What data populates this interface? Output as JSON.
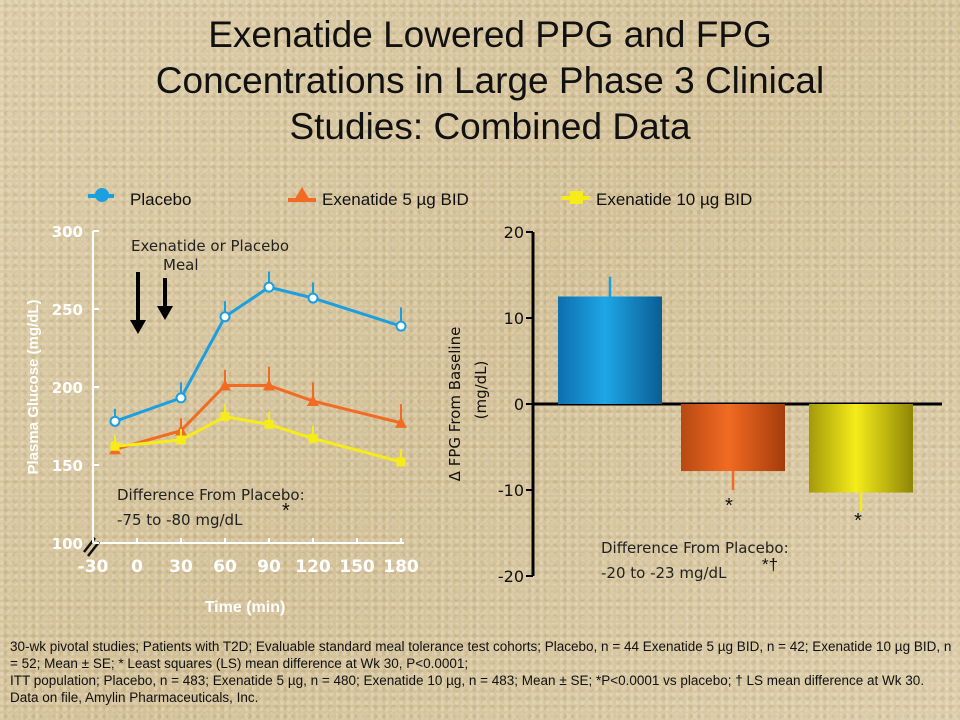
{
  "title": {
    "line1": "Exenatide Lowered PPG and FPG",
    "line2": "Concentrations in Large Phase 3  Clinical",
    "line3": "Studies: Combined Data"
  },
  "legend": [
    {
      "label": "Placebo",
      "color": "#1a9fe0",
      "marker": "circle"
    },
    {
      "label": "Exenatide 5 µg BID",
      "color": "#f26b22",
      "marker": "triangle"
    },
    {
      "label": "Exenatide 10 µg BID",
      "color": "#f5ec1a",
      "marker": "square"
    }
  ],
  "colors": {
    "placebo": "#1a9fe0",
    "exenatide_5": "#f26b22",
    "exenatide_10": "#f5ec1a"
  },
  "chart_data": [
    {
      "type": "line",
      "xlabel": "Time (min)",
      "ylabel": "Plasma Glucose (mg/dL)",
      "xlim": [
        -30,
        180
      ],
      "ylim": [
        100,
        300
      ],
      "xticks": [
        -30,
        0,
        30,
        60,
        90,
        120,
        150,
        180
      ],
      "yticks": [
        100,
        150,
        200,
        250,
        300
      ],
      "annotations": {
        "arrow_label_1": "Exenatide  or Placebo",
        "arrow_label_2": "Meal",
        "difference_line1": "Difference From Placebo:",
        "difference_line2": "-75 to -80 mg/dL",
        "star": "*"
      },
      "arrows_at_x": [
        -15,
        -1
      ],
      "series": [
        {
          "name": "Placebo",
          "x": [
            -15,
            30,
            60,
            90,
            120,
            180
          ],
          "y": [
            178,
            193,
            245,
            264,
            257,
            239
          ],
          "err": [
            8,
            10,
            10,
            10,
            10,
            12
          ]
        },
        {
          "name": "Exenatide 5 µg BID",
          "x": [
            -15,
            30,
            60,
            90,
            120,
            180
          ],
          "y": [
            160,
            172,
            201,
            201,
            191,
            177
          ],
          "err": [
            7,
            8,
            10,
            12,
            12,
            12
          ]
        },
        {
          "name": "Exenatide 10 µg BID",
          "x": [
            -15,
            30,
            60,
            90,
            120,
            180
          ],
          "y": [
            162,
            166,
            181,
            176,
            167,
            152
          ],
          "err": [
            7,
            7,
            8,
            8,
            8,
            8
          ]
        }
      ]
    },
    {
      "type": "bar",
      "ylabel_line1": "Δ FPG From Baseline",
      "ylabel_line2": "(mg/dL)",
      "ylim": [
        -20,
        20
      ],
      "yticks": [
        -20,
        -10,
        0,
        10,
        20
      ],
      "series": [
        {
          "name": "Placebo",
          "value": 12.5,
          "err": 2.3
        },
        {
          "name": "Exenatide 5 µg BID",
          "value": -7.8,
          "err": 2.2,
          "mark": "*"
        },
        {
          "name": "Exenatide 10 µg BID",
          "value": -10.3,
          "err": 2.2,
          "mark": "*"
        }
      ],
      "annotations": {
        "difference_line1": "Difference From Placebo:",
        "difference_line2": "-20 to -23 mg/dL",
        "mark": "*†"
      }
    }
  ],
  "footnote": {
    "p1": "30-wk pivotal studies; Patients with T2D; Evaluable standard meal tolerance test cohorts; Placebo, n = 44 Exenatide 5 µg BID, n = 42; Exenatide 10 µg BID, n = 52; Mean ± SE; * Least squares (LS) mean difference at Wk 30, P<0.0001;",
    "p2": "ITT population; Placebo, n = 483; Exenatide 5 µg, n = 480; Exenatide 10 µg, n = 483; Mean ± SE; *P<0.0001 vs placebo; † LS mean difference at Wk 30.  Data on file, Amylin Pharmaceuticals, Inc."
  }
}
